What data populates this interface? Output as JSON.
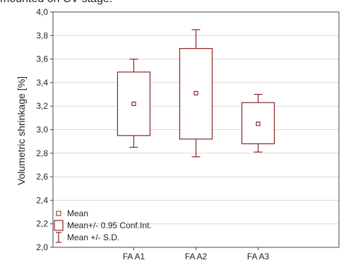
{
  "caption": "mounted on CV stage.",
  "chart_data": {
    "type": "box",
    "ylabel": "Volumetric shrinkage [%]",
    "xlabel": "",
    "ylim": [
      2.0,
      4.0
    ],
    "y_ticks": [
      2.0,
      2.2,
      2.4,
      2.6,
      2.8,
      3.0,
      3.2,
      3.4,
      3.6,
      3.8,
      4.0
    ],
    "y_tick_labels": [
      "2,0",
      "2,2",
      "2,4",
      "2,6",
      "2,8",
      "3,0",
      "3,2",
      "3,4",
      "3,6",
      "3,8",
      "4,0"
    ],
    "grid": true,
    "categories": [
      "FA A1",
      "FA A2",
      "FA A3"
    ],
    "mean": [
      3.22,
      3.31,
      3.05
    ],
    "ci_low": [
      2.95,
      2.92,
      2.88
    ],
    "ci_high": [
      3.49,
      3.69,
      3.23
    ],
    "sd_low": [
      2.85,
      2.77,
      2.81
    ],
    "sd_high": [
      3.6,
      3.85,
      3.3
    ],
    "legend": {
      "placement": "bottom-left",
      "entries": [
        {
          "label": "Mean",
          "marker": "square"
        },
        {
          "label": "Mean+/- 0.95 Conf.Int.",
          "marker": "box"
        },
        {
          "label": "Mean +/- S.D.",
          "marker": "whisker"
        }
      ]
    },
    "colors": {
      "series": "#8b2323",
      "grid": "#d8d8d8",
      "axis": "#444444"
    }
  }
}
